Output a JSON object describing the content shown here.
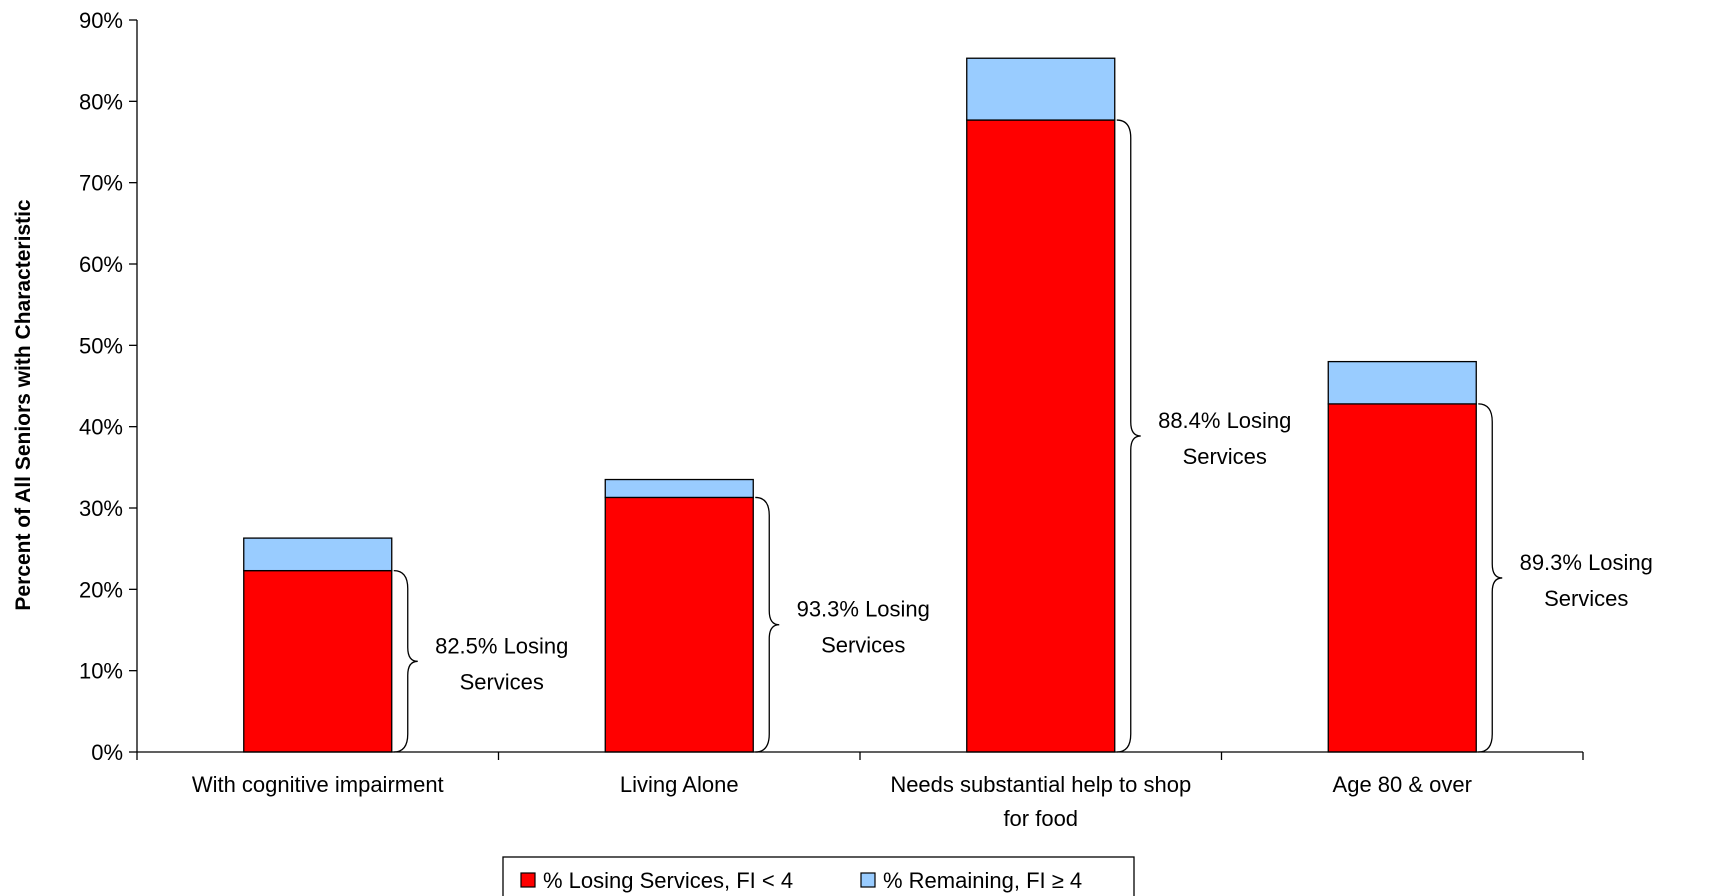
{
  "chart_data": {
    "type": "bar",
    "stacked": true,
    "categories": [
      [
        "With cognitive impairment"
      ],
      [
        "Living Alone"
      ],
      [
        "Needs substantial help to shop",
        "for food"
      ],
      [
        "Age 80 & over"
      ]
    ],
    "series": [
      {
        "name": "% Losing Services, FI < 4",
        "color": "#ff0000",
        "values": [
          22.3,
          31.3,
          77.7,
          42.8
        ]
      },
      {
        "name": "% Remaining, FI ≥ 4",
        "color": "#99ccff",
        "values": [
          4.0,
          2.2,
          7.6,
          5.2
        ]
      }
    ],
    "annotations": [
      [
        "82.5% Losing",
        "Services"
      ],
      [
        "93.3% Losing",
        "Services"
      ],
      [
        "88.4% Losing",
        "Services"
      ],
      [
        "89.3% Losing",
        "Services"
      ]
    ],
    "ylabel": "Percent of All Seniors with Characteristic",
    "ylim": [
      0,
      90
    ],
    "yticks": [
      "0%",
      "10%",
      "20%",
      "30%",
      "40%",
      "50%",
      "60%",
      "70%",
      "80%",
      "90%"
    ],
    "grid": false,
    "legend_position": "bottom"
  }
}
